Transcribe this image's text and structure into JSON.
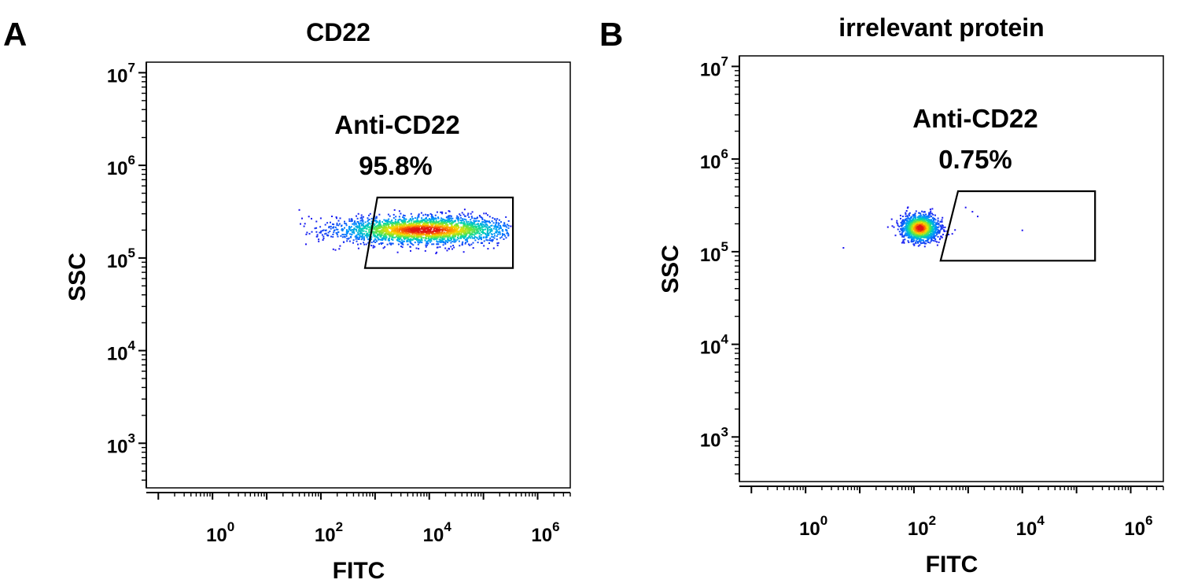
{
  "chart_data": [
    {
      "panel": "A",
      "type": "scatter",
      "subtype": "flow-cytometry-density-dot-plot",
      "title": "CD22",
      "xlabel": "FITC",
      "ylabel": "SSC",
      "x_scale": "log",
      "y_scale": "log",
      "xlim": [
        0.06,
        4000000
      ],
      "ylim": [
        330,
        13000000
      ],
      "x_ticks": [
        {
          "base": "10",
          "exp": "0",
          "value": 1
        },
        {
          "base": "10",
          "exp": "2",
          "value": 100
        },
        {
          "base": "10",
          "exp": "4",
          "value": 10000
        },
        {
          "base": "10",
          "exp": "6",
          "value": 1000000
        }
      ],
      "y_ticks": [
        {
          "base": "10",
          "exp": "3",
          "value": 1000
        },
        {
          "base": "10",
          "exp": "4",
          "value": 10000
        },
        {
          "base": "10",
          "exp": "5",
          "value": 100000
        },
        {
          "base": "10",
          "exp": "6",
          "value": 1000000
        },
        {
          "base": "10",
          "exp": "7",
          "value": 10000000
        }
      ],
      "gate": {
        "label": "Anti-CD22",
        "percent": "95.8%",
        "polygon": [
          [
            1100,
            450000
          ],
          [
            350000,
            450000
          ],
          [
            350000,
            78000
          ],
          [
            650,
            78000
          ]
        ]
      },
      "population": {
        "center": [
          8000,
          200000
        ],
        "x_range": [
          40,
          300000
        ],
        "y_range": [
          100000,
          340000
        ]
      }
    },
    {
      "panel": "B",
      "type": "scatter",
      "subtype": "flow-cytometry-density-dot-plot",
      "title": "irrelevant protein",
      "xlabel": "FITC",
      "ylabel": "SSC",
      "x_scale": "log",
      "y_scale": "log",
      "xlim": [
        0.06,
        4000000
      ],
      "ylim": [
        330,
        13000000
      ],
      "x_ticks": [
        {
          "base": "10",
          "exp": "0",
          "value": 1
        },
        {
          "base": "10",
          "exp": "2",
          "value": 100
        },
        {
          "base": "10",
          "exp": "4",
          "value": 10000
        },
        {
          "base": "10",
          "exp": "6",
          "value": 1000000
        }
      ],
      "y_ticks": [
        {
          "base": "10",
          "exp": "3",
          "value": 1000
        },
        {
          "base": "10",
          "exp": "4",
          "value": 10000
        },
        {
          "base": "10",
          "exp": "5",
          "value": 100000
        },
        {
          "base": "10",
          "exp": "6",
          "value": 1000000
        },
        {
          "base": "10",
          "exp": "7",
          "value": 10000000
        }
      ],
      "gate": {
        "label": "Anti-CD22",
        "percent": "0.75%",
        "polygon": [
          [
            650,
            450000
          ],
          [
            220000,
            450000
          ],
          [
            220000,
            80000
          ],
          [
            310,
            80000
          ]
        ]
      },
      "population": {
        "center": [
          130,
          180000
        ],
        "x_range": [
          25,
          800
        ],
        "y_range": [
          110000,
          320000
        ]
      }
    }
  ]
}
